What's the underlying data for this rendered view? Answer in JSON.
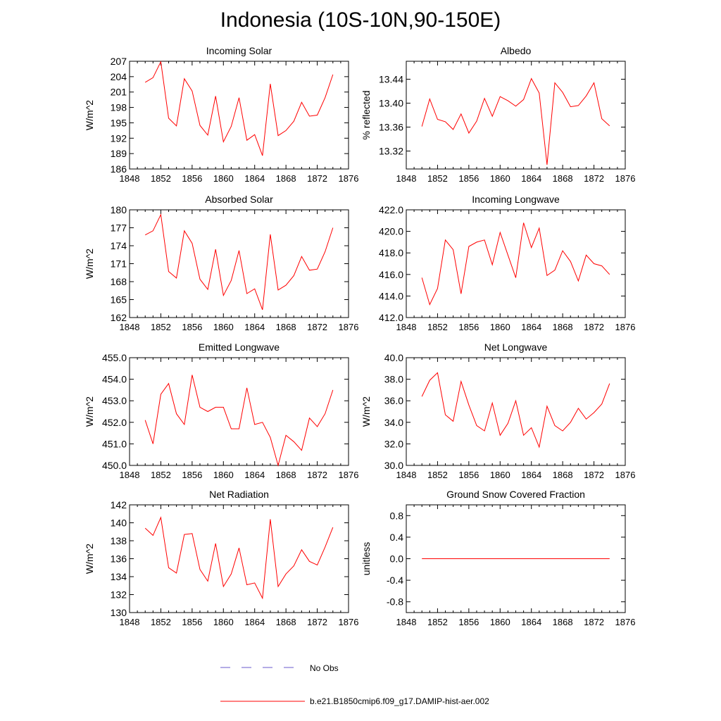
{
  "figure": {
    "title": "Indonesia (10S-10N,90-150E)",
    "line_color": "#ff0000",
    "obs_color": "#6a5acd",
    "legend": [
      {
        "label": "No Obs",
        "style": "dashed"
      },
      {
        "label": "b.e21.B1850cmip6.f09_g17.DAMIP-hist-aer.002",
        "style": "solid"
      }
    ]
  },
  "chart_data": [
    {
      "type": "line",
      "title": "Incoming Solar",
      "ylabel": "W/m^2",
      "xlim": [
        1848,
        1876
      ],
      "xticks": [
        1848,
        1852,
        1856,
        1860,
        1864,
        1868,
        1872,
        1876
      ],
      "ylim": [
        186,
        207
      ],
      "yticks": [
        "186",
        "189",
        "192",
        "195",
        "198",
        "201",
        "204",
        "207"
      ],
      "ytick_values": [
        186,
        189,
        192,
        195,
        198,
        201,
        204,
        207
      ],
      "x": [
        1850,
        1851,
        1852,
        1853,
        1854,
        1855,
        1856,
        1857,
        1858,
        1859,
        1860,
        1861,
        1862,
        1863,
        1864,
        1865,
        1866,
        1867,
        1868,
        1869,
        1870,
        1871,
        1872,
        1873,
        1874
      ],
      "series": [
        {
          "values": [
            202.9,
            203.8,
            206.9,
            195.9,
            194.4,
            203.6,
            201.2,
            194.5,
            192.6,
            200.2,
            191.3,
            194.3,
            199.9,
            191.6,
            192.7,
            188.6,
            202.6,
            192.5,
            193.5,
            195.3,
            199.0,
            196.3,
            196.5,
            199.9,
            204.4
          ]
        }
      ]
    },
    {
      "type": "line",
      "title": "Albedo",
      "ylabel": "% reflected",
      "xlim": [
        1848,
        1876
      ],
      "xticks": [
        1848,
        1852,
        1856,
        1860,
        1864,
        1868,
        1872,
        1876
      ],
      "ylim": [
        13.29,
        13.47
      ],
      "yticks": [
        "13.32",
        "13.36",
        "13.40",
        "13.44"
      ],
      "ytick_values": [
        13.32,
        13.36,
        13.4,
        13.44
      ],
      "x": [
        1850,
        1851,
        1852,
        1853,
        1854,
        1855,
        1856,
        1857,
        1858,
        1859,
        1860,
        1861,
        1862,
        1863,
        1864,
        1865,
        1866,
        1867,
        1868,
        1869,
        1870,
        1871,
        1872,
        1873,
        1874
      ],
      "series": [
        {
          "values": [
            13.361,
            13.407,
            13.373,
            13.369,
            13.356,
            13.382,
            13.35,
            13.37,
            13.408,
            13.378,
            13.411,
            13.404,
            13.395,
            13.406,
            13.441,
            13.417,
            13.297,
            13.434,
            13.418,
            13.394,
            13.396,
            13.412,
            13.434,
            13.374,
            13.362
          ]
        }
      ]
    },
    {
      "type": "line",
      "title": "Absorbed Solar",
      "ylabel": "W/m^2",
      "xlim": [
        1848,
        1876
      ],
      "xticks": [
        1848,
        1852,
        1856,
        1860,
        1864,
        1868,
        1872,
        1876
      ],
      "ylim": [
        162,
        180
      ],
      "yticks": [
        "162",
        "165",
        "168",
        "171",
        "174",
        "177",
        "180"
      ],
      "ytick_values": [
        162,
        165,
        168,
        171,
        174,
        177,
        180
      ],
      "x": [
        1850,
        1851,
        1852,
        1853,
        1854,
        1855,
        1856,
        1857,
        1858,
        1859,
        1860,
        1861,
        1862,
        1863,
        1864,
        1865,
        1866,
        1867,
        1868,
        1869,
        1870,
        1871,
        1872,
        1873,
        1874
      ],
      "series": [
        {
          "values": [
            175.8,
            176.5,
            179.2,
            169.7,
            168.6,
            176.5,
            174.4,
            168.4,
            166.7,
            173.4,
            165.7,
            168.2,
            173.2,
            166.0,
            166.8,
            163.3,
            175.9,
            166.6,
            167.4,
            169.0,
            172.2,
            169.9,
            170.1,
            173.0,
            177.0
          ]
        }
      ]
    },
    {
      "type": "line",
      "title": "Incoming Longwave",
      "ylabel": "",
      "xlim": [
        1848,
        1876
      ],
      "xticks": [
        1848,
        1852,
        1856,
        1860,
        1864,
        1868,
        1872,
        1876
      ],
      "ylim": [
        412,
        422
      ],
      "yticks": [
        "412.0",
        "414.0",
        "416.0",
        "418.0",
        "420.0",
        "422.0"
      ],
      "ytick_values": [
        412,
        414,
        416,
        418,
        420,
        422
      ],
      "x": [
        1850,
        1851,
        1852,
        1853,
        1854,
        1855,
        1856,
        1857,
        1858,
        1859,
        1860,
        1861,
        1862,
        1863,
        1864,
        1865,
        1866,
        1867,
        1868,
        1869,
        1870,
        1871,
        1872,
        1873,
        1874
      ],
      "series": [
        {
          "values": [
            415.7,
            413.2,
            414.7,
            419.2,
            418.3,
            414.2,
            418.6,
            419.0,
            419.2,
            416.9,
            419.9,
            417.8,
            415.7,
            420.8,
            418.5,
            420.3,
            415.9,
            416.4,
            418.2,
            417.2,
            415.4,
            417.8,
            417.0,
            416.8,
            416.0
          ]
        }
      ]
    },
    {
      "type": "line",
      "title": "Emitted Longwave",
      "ylabel": "W/m^2",
      "xlim": [
        1848,
        1876
      ],
      "xticks": [
        1848,
        1852,
        1856,
        1860,
        1864,
        1868,
        1872,
        1876
      ],
      "ylim": [
        450,
        455
      ],
      "yticks": [
        "450.0",
        "451.0",
        "452.0",
        "453.0",
        "454.0",
        "455.0"
      ],
      "ytick_values": [
        450,
        451,
        452,
        453,
        454,
        455
      ],
      "x": [
        1850,
        1851,
        1852,
        1853,
        1854,
        1855,
        1856,
        1857,
        1858,
        1859,
        1860,
        1861,
        1862,
        1863,
        1864,
        1865,
        1866,
        1867,
        1868,
        1869,
        1870,
        1871,
        1872,
        1873,
        1874
      ],
      "series": [
        {
          "values": [
            452.1,
            451.0,
            453.3,
            453.8,
            452.4,
            451.9,
            454.2,
            452.7,
            452.5,
            452.7,
            452.7,
            451.7,
            451.7,
            453.6,
            451.9,
            452.0,
            451.3,
            450.0,
            451.4,
            451.1,
            450.7,
            452.2,
            451.8,
            452.4,
            453.5
          ]
        }
      ]
    },
    {
      "type": "line",
      "title": "Net Longwave",
      "ylabel": "W/m^2",
      "xlim": [
        1848,
        1876
      ],
      "xticks": [
        1848,
        1852,
        1856,
        1860,
        1864,
        1868,
        1872,
        1876
      ],
      "ylim": [
        30,
        40
      ],
      "yticks": [
        "30.0",
        "32.0",
        "34.0",
        "36.0",
        "38.0",
        "40.0"
      ],
      "ytick_values": [
        30,
        32,
        34,
        36,
        38,
        40
      ],
      "x": [
        1850,
        1851,
        1852,
        1853,
        1854,
        1855,
        1856,
        1857,
        1858,
        1859,
        1860,
        1861,
        1862,
        1863,
        1864,
        1865,
        1866,
        1867,
        1868,
        1869,
        1870,
        1871,
        1872,
        1873,
        1874
      ],
      "series": [
        {
          "values": [
            36.4,
            37.9,
            38.6,
            34.7,
            34.1,
            37.8,
            35.6,
            33.7,
            33.2,
            35.8,
            32.8,
            33.9,
            36.0,
            32.8,
            33.5,
            31.7,
            35.5,
            33.7,
            33.2,
            34.0,
            35.3,
            34.3,
            34.9,
            35.7,
            37.6
          ]
        }
      ]
    },
    {
      "type": "line",
      "title": "Net Radiation",
      "ylabel": "W/m^2",
      "xlim": [
        1848,
        1876
      ],
      "xticks": [
        1848,
        1852,
        1856,
        1860,
        1864,
        1868,
        1872,
        1876
      ],
      "ylim": [
        130,
        142
      ],
      "yticks": [
        "130",
        "132",
        "134",
        "136",
        "138",
        "140",
        "142"
      ],
      "ytick_values": [
        130,
        132,
        134,
        136,
        138,
        140,
        142
      ],
      "x": [
        1850,
        1851,
        1852,
        1853,
        1854,
        1855,
        1856,
        1857,
        1858,
        1859,
        1860,
        1861,
        1862,
        1863,
        1864,
        1865,
        1866,
        1867,
        1868,
        1869,
        1870,
        1871,
        1872,
        1873,
        1874
      ],
      "series": [
        {
          "values": [
            139.4,
            138.6,
            140.6,
            135.0,
            134.4,
            138.7,
            138.8,
            134.8,
            133.5,
            137.7,
            132.9,
            134.3,
            137.2,
            133.1,
            133.3,
            131.6,
            140.4,
            132.9,
            134.3,
            135.2,
            137.0,
            135.7,
            135.3,
            137.3,
            139.5
          ]
        }
      ]
    },
    {
      "type": "line",
      "title": "Ground Snow Covered Fraction",
      "ylabel": "unitless",
      "xlim": [
        1848,
        1876
      ],
      "xticks": [
        1848,
        1852,
        1856,
        1860,
        1864,
        1868,
        1872,
        1876
      ],
      "ylim": [
        -1,
        1
      ],
      "yticks": [
        "-0.8",
        "-0.4",
        "0.0",
        "0.4",
        "0.8"
      ],
      "ytick_values": [
        -0.8,
        -0.4,
        0.0,
        0.4,
        0.8
      ],
      "x": [
        1850,
        1851,
        1852,
        1853,
        1854,
        1855,
        1856,
        1857,
        1858,
        1859,
        1860,
        1861,
        1862,
        1863,
        1864,
        1865,
        1866,
        1867,
        1868,
        1869,
        1870,
        1871,
        1872,
        1873,
        1874
      ],
      "series": [
        {
          "values": [
            0,
            0,
            0,
            0,
            0,
            0,
            0,
            0,
            0,
            0,
            0,
            0,
            0,
            0,
            0,
            0,
            0,
            0,
            0,
            0,
            0,
            0,
            0,
            0,
            0
          ]
        }
      ]
    }
  ]
}
